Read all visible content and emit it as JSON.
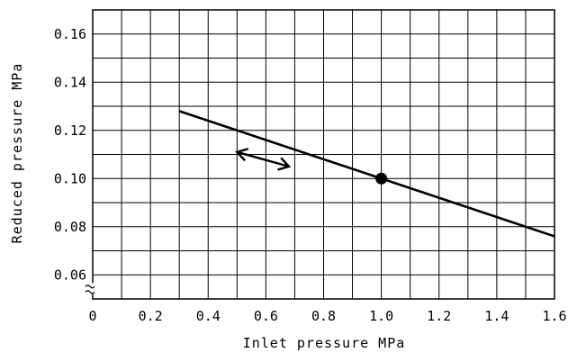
{
  "chart_data": {
    "type": "line",
    "title": "",
    "xlabel": "Inlet pressure  MPa",
    "ylabel": "Reduced pressure  MPa",
    "xlim": [
      0,
      1.6
    ],
    "ylim": [
      0.05,
      0.17
    ],
    "x_ticks": [
      "0",
      "0.2",
      "0.4",
      "0.6",
      "0.8",
      "1.0",
      "1.2",
      "1.4",
      "1.6"
    ],
    "y_ticks": [
      "0.16",
      "0.14",
      "0.12",
      "0.10",
      "0.08",
      "0.06"
    ],
    "x_tick_values": [
      0,
      0.2,
      0.4,
      0.6,
      0.8,
      1.0,
      1.2,
      1.4,
      1.6
    ],
    "y_tick_values": [
      0.16,
      0.14,
      0.12,
      0.1,
      0.08,
      0.06
    ],
    "grid": true,
    "x_grid_step": 0.1,
    "y_grid_step": 0.01,
    "axis_break": "y",
    "series": [
      {
        "x": [
          0.3,
          1.0,
          1.6
        ],
        "y": [
          0.128,
          0.1,
          0.076
        ]
      }
    ],
    "set_point": {
      "x": 1.0,
      "y": 0.1
    },
    "adjust_arrow": {
      "from": [
        0.5,
        0.111
      ],
      "to": [
        0.68,
        0.105
      ]
    }
  }
}
